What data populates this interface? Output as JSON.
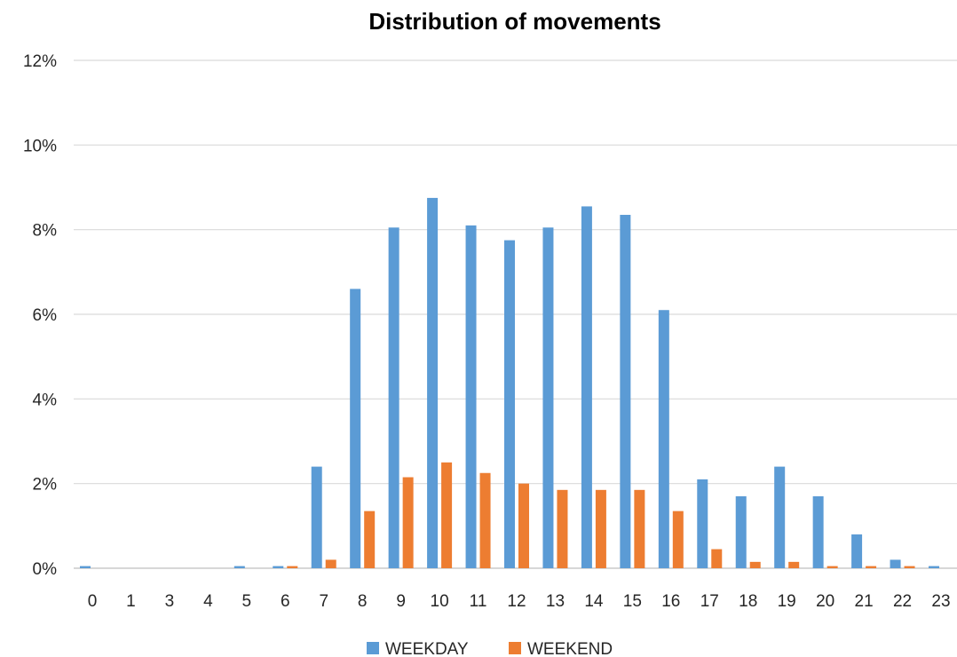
{
  "chart_data": {
    "type": "bar",
    "title": "Distribution of movements",
    "xlabel": "",
    "ylabel": "",
    "categories": [
      "0",
      "1",
      "3",
      "4",
      "5",
      "6",
      "7",
      "8",
      "9",
      "10",
      "11",
      "12",
      "13",
      "14",
      "15",
      "16",
      "17",
      "18",
      "19",
      "20",
      "21",
      "22",
      "23"
    ],
    "series": [
      {
        "name": "WEEKDAY",
        "color": "#5b9bd5",
        "values": [
          0.05,
          0,
          0,
          0,
          0.05,
          0.05,
          2.4,
          6.6,
          8.05,
          8.75,
          8.1,
          7.75,
          8.05,
          8.55,
          8.35,
          6.1,
          2.1,
          1.7,
          2.4,
          1.7,
          0.8,
          0.2,
          0.05
        ]
      },
      {
        "name": "WEEKEND",
        "color": "#ed7d31",
        "values": [
          0,
          0,
          0,
          0,
          0,
          0.05,
          0.2,
          1.35,
          2.15,
          2.5,
          2.25,
          2.0,
          1.85,
          1.85,
          1.85,
          1.35,
          0.45,
          0.15,
          0.15,
          0.05,
          0.05,
          0.05,
          0
        ]
      }
    ],
    "ylim": [
      0,
      12
    ],
    "yticks": [
      0,
      2,
      4,
      6,
      8,
      10,
      12
    ],
    "ytick_labels": [
      "0%",
      "2%",
      "4%",
      "6%",
      "8%",
      "10%",
      "12%"
    ],
    "grid": true,
    "legend": "bottom-center"
  }
}
